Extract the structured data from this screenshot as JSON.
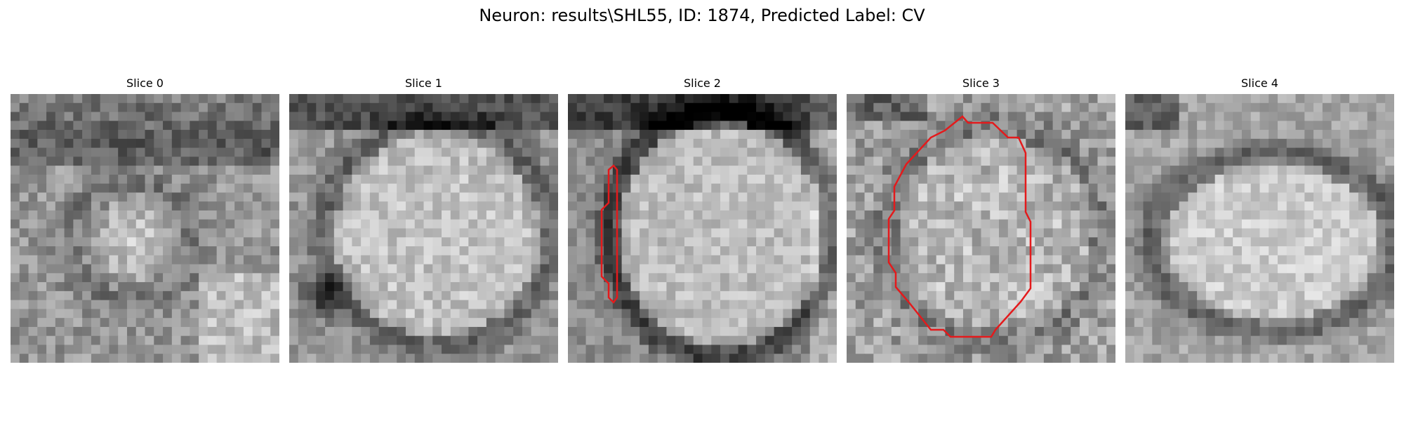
{
  "figure": {
    "title": "Neuron: results\\SHL55, ID: 1874, Predicted Label: CV"
  },
  "panels": [
    {
      "title": "Slice 0",
      "has_contour": false,
      "tone": "dark"
    },
    {
      "title": "Slice 1",
      "has_contour": false,
      "tone": "mid"
    },
    {
      "title": "Slice 2",
      "has_contour": true,
      "tone": "cell"
    },
    {
      "title": "Slice 3",
      "has_contour": true,
      "tone": "noise"
    },
    {
      "title": "Slice 4",
      "has_contour": false,
      "tone": "light"
    }
  ],
  "colors": {
    "contour": "#e41a1c",
    "background": "#ffffff"
  },
  "image_style": "grayscale-pixelated",
  "grid_size": 30
}
